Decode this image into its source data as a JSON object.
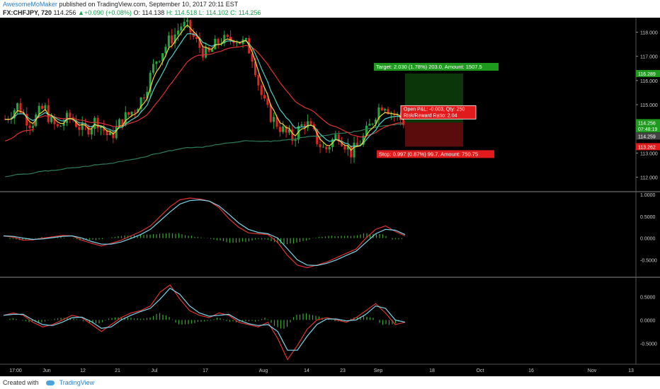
{
  "header": {
    "author": "AwesomeMoMaker",
    "published_text": " published on TradingView.com, September 10, 2017 20:11 EST"
  },
  "symbol_bar": {
    "symbol": "FX:CHFJPY, 720",
    "last": "114.256",
    "change": "+0.090 (+0.08%)",
    "open": "O: 114.138",
    "high": "H: 114.518",
    "low": "L: 114.102",
    "close": "C: 114.256"
  },
  "footer": {
    "created_with": "Created with",
    "brand": "TradingView"
  },
  "colors": {
    "bull": "#26a641",
    "bear": "#e02323",
    "ma_fast": "#f5d442",
    "ma_mid": "#4fd1c5",
    "ma_slow": "#e03131",
    "ma_long": "#2e7d5b",
    "target_bg": "#1e9b1e",
    "stop_bg": "#e11b1b"
  },
  "chart_data": [
    {
      "type": "candlestick",
      "pane": "price",
      "y_ticks": [
        "118.000",
        "117.000",
        "116.000",
        "115.000",
        "114.000",
        "113.000",
        "112.000"
      ],
      "ylim": [
        111.4,
        118.6
      ],
      "x_ticks": [
        "17:00",
        "Jun",
        "12",
        "21",
        "Jul",
        "17",
        "Aug",
        "14",
        "23",
        "Sep",
        "18",
        "Oct",
        "16",
        "Nov",
        "13"
      ],
      "price_path": [
        114.4,
        114.7,
        115.0,
        114.5,
        114.2,
        114.6,
        114.9,
        114.3,
        114.0,
        114.3,
        114.5,
        114.2,
        113.9,
        114.1,
        114.4,
        114.0,
        113.6,
        114.0,
        114.4,
        114.6,
        114.9,
        115.3,
        116.0,
        116.8,
        117.2,
        117.6,
        117.9,
        118.3,
        118.2,
        117.7,
        117.3,
        117.0,
        117.4,
        117.7,
        117.6,
        117.8,
        117.6,
        117.5,
        116.9,
        115.6,
        114.8,
        114.4,
        114.1,
        113.8,
        113.6,
        114.0,
        114.3,
        113.9,
        113.4,
        113.1,
        113.5,
        113.8,
        113.4,
        113.0,
        113.3,
        113.7,
        114.2,
        114.8,
        115.1,
        114.7,
        114.5,
        114.3
      ],
      "annotations": {
        "price_labels": [
          {
            "price": 116.289,
            "text": "116.289",
            "bg": "#1e9b1e"
          },
          {
            "price": 114.256,
            "text": "114.256",
            "bg": "#1e9b1e"
          },
          {
            "price": 114.0,
            "text": "07:48:19",
            "bg": "#1e9b1e"
          },
          {
            "price": 113.7,
            "text": "114.259",
            "bg": "#444444"
          },
          {
            "price": 113.262,
            "text": "113.262",
            "bg": "#e11b1b"
          }
        ],
        "target_label": "Target: 2.030 (1.78%) 203.0, Amount: 1507.5",
        "stop_label": "Stop: 0.997 (0.87%) 99.7, Amount: 750.75",
        "pnl_label": "Open P&L: -0.003, Qty: 250",
        "rr_label": "Risk/Reward Ratio: 2.04",
        "target_price": 116.289,
        "entry_price": 114.259,
        "stop_price": 113.262
      }
    },
    {
      "type": "line+histogram",
      "pane": "macd",
      "y_ticks": [
        "1.0000",
        "0.5000",
        "0.0000",
        "-0.5000"
      ],
      "ylim": [
        -0.9,
        1.05
      ],
      "macd": [
        0.05,
        0.02,
        -0.05,
        -0.04,
        0.0,
        0.03,
        0.06,
        0.05,
        -0.05,
        -0.12,
        -0.18,
        -0.12,
        -0.05,
        0.05,
        0.15,
        0.28,
        0.5,
        0.72,
        0.88,
        0.92,
        0.9,
        0.85,
        0.7,
        0.45,
        0.25,
        0.12,
        0.1,
        0.08,
        -0.1,
        -0.4,
        -0.62,
        -0.68,
        -0.62,
        -0.55,
        -0.45,
        -0.35,
        -0.25,
        0.0,
        0.2,
        0.28,
        0.15,
        0.05
      ],
      "signal": [
        0.05,
        0.04,
        0.0,
        -0.03,
        -0.02,
        0.01,
        0.04,
        0.05,
        0.0,
        -0.08,
        -0.14,
        -0.14,
        -0.09,
        -0.01,
        0.08,
        0.2,
        0.4,
        0.6,
        0.78,
        0.86,
        0.88,
        0.85,
        0.74,
        0.55,
        0.35,
        0.2,
        0.13,
        0.1,
        0.0,
        -0.25,
        -0.5,
        -0.62,
        -0.63,
        -0.58,
        -0.5,
        -0.4,
        -0.3,
        -0.1,
        0.1,
        0.2,
        0.18,
        0.08
      ],
      "hist": [
        0.0,
        -0.02,
        -0.05,
        -0.01,
        0.02,
        0.02,
        0.02,
        0.0,
        -0.05,
        -0.04,
        -0.04,
        0.02,
        0.04,
        0.06,
        0.07,
        0.08,
        0.1,
        0.12,
        0.1,
        0.06,
        0.02,
        0.0,
        -0.04,
        -0.1,
        -0.1,
        -0.08,
        -0.03,
        -0.02,
        -0.1,
        -0.15,
        -0.12,
        -0.06,
        0.01,
        0.03,
        0.05,
        0.05,
        0.05,
        0.1,
        0.1,
        0.08,
        -0.03,
        -0.03
      ]
    },
    {
      "type": "line+histogram",
      "pane": "oscillator",
      "y_ticks": [
        "0.5000",
        "0.0000",
        "-0.5000"
      ],
      "ylim": [
        -0.95,
        0.9
      ],
      "line1": [
        0.1,
        0.15,
        0.1,
        -0.05,
        -0.15,
        -0.1,
        0.0,
        0.1,
        0.05,
        -0.1,
        -0.25,
        -0.1,
        0.05,
        0.15,
        0.2,
        0.3,
        0.6,
        0.75,
        0.45,
        0.2,
        0.1,
        0.05,
        0.15,
        0.1,
        -0.05,
        -0.1,
        -0.15,
        -0.05,
        -0.4,
        -0.85,
        -0.55,
        -0.2,
        0.0,
        0.05,
        0.0,
        -0.05,
        0.05,
        0.2,
        0.35,
        0.15,
        -0.1,
        -0.05
      ],
      "line2": [
        0.1,
        0.12,
        0.12,
        0.0,
        -0.1,
        -0.12,
        -0.05,
        0.05,
        0.06,
        -0.04,
        -0.18,
        -0.15,
        0.0,
        0.1,
        0.18,
        0.25,
        0.45,
        0.68,
        0.55,
        0.3,
        0.15,
        0.08,
        0.1,
        0.12,
        0.0,
        -0.08,
        -0.12,
        -0.1,
        -0.25,
        -0.65,
        -0.65,
        -0.35,
        -0.1,
        0.02,
        0.02,
        -0.02,
        0.0,
        0.12,
        0.3,
        0.25,
        0.0,
        -0.05
      ],
      "hist": [
        0.0,
        0.03,
        -0.02,
        -0.05,
        -0.05,
        0.02,
        0.05,
        0.05,
        -0.01,
        -0.06,
        -0.07,
        0.05,
        0.05,
        0.05,
        0.02,
        0.05,
        0.15,
        0.07,
        -0.1,
        -0.1,
        -0.05,
        -0.03,
        0.05,
        -0.02,
        -0.05,
        -0.02,
        -0.03,
        0.05,
        -0.15,
        -0.2,
        0.1,
        0.15,
        0.1,
        0.03,
        -0.02,
        -0.03,
        0.05,
        0.08,
        0.05,
        -0.1,
        -0.1,
        0.0
      ]
    }
  ]
}
